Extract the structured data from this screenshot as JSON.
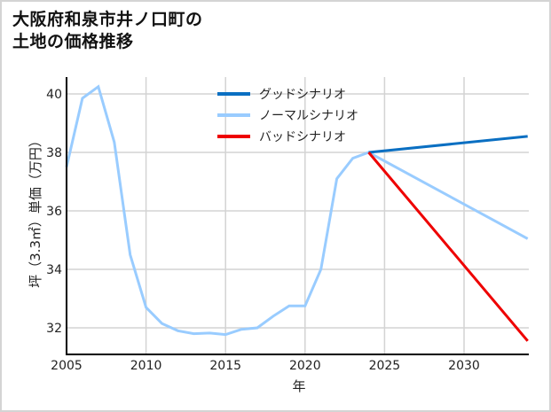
{
  "title_lines": [
    "大阪府和泉市井ノ口町の",
    "土地の価格推移"
  ],
  "chart_data": {
    "type": "line",
    "title": "大阪府和泉市井ノ口町の土地の価格推移",
    "xlabel": "年",
    "ylabel": "坪（3.3㎡）単価（万円）",
    "xlim": [
      2005,
      2034
    ],
    "ylim": [
      31.2,
      40.7
    ],
    "xticks": [
      2005,
      2010,
      2015,
      2020,
      2025,
      2030
    ],
    "yticks": [
      32,
      34,
      36,
      38,
      40
    ],
    "grid": true,
    "legend_position": "upper center",
    "series": [
      {
        "name": "グッドシナリオ",
        "color": "#0a6fc2",
        "x": [
          2024,
          2034
        ],
        "values": [
          38.0,
          38.55
        ]
      },
      {
        "name": "ノーマルシナリオ",
        "color": "#99ccff",
        "x": [
          2005,
          2006,
          2007,
          2008,
          2009,
          2010,
          2011,
          2012,
          2013,
          2014,
          2015,
          2016,
          2017,
          2018,
          2019,
          2020,
          2021,
          2022,
          2023,
          2024,
          2034
        ],
        "values": [
          37.5,
          39.85,
          40.25,
          38.35,
          34.5,
          32.7,
          32.15,
          31.9,
          31.8,
          31.82,
          31.77,
          31.95,
          32.0,
          32.4,
          32.75,
          32.75,
          34.0,
          37.1,
          37.8,
          38.0,
          35.05
        ]
      },
      {
        "name": "バッドシナリオ",
        "color": "#ee0000",
        "x": [
          2024,
          2034
        ],
        "values": [
          38.0,
          31.55
        ]
      }
    ]
  }
}
